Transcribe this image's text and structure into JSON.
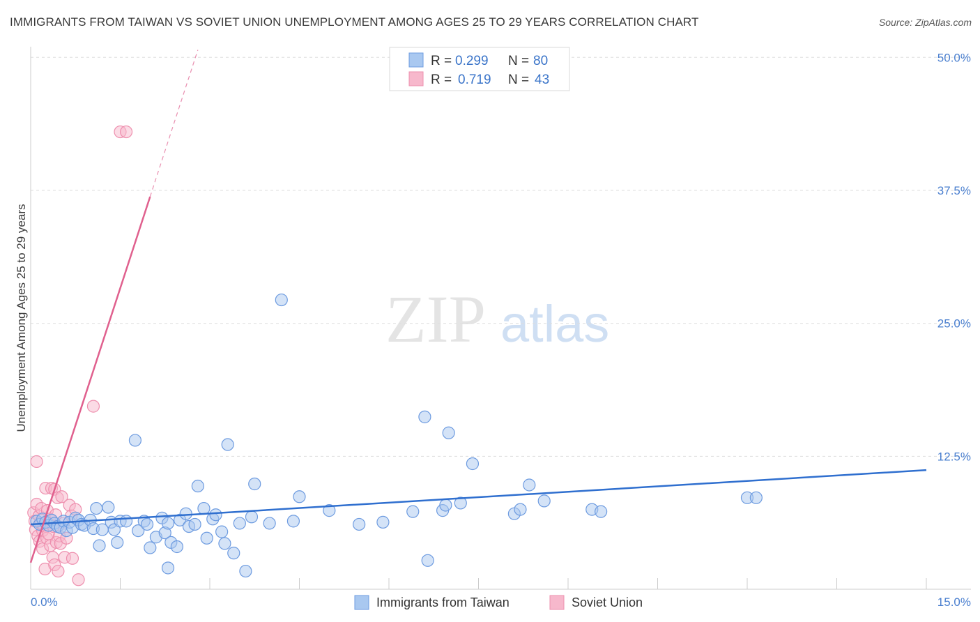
{
  "title": "IMMIGRANTS FROM TAIWAN VS SOVIET UNION UNEMPLOYMENT AMONG AGES 25 TO 29 YEARS CORRELATION CHART",
  "source": "Source: ZipAtlas.com",
  "watermark": {
    "zip": "ZIP",
    "atlas": "atlas"
  },
  "colors": {
    "taiwan_fill": "#a9c8f0",
    "taiwan_stroke": "#6d9be0",
    "taiwan_line": "#2f6fcf",
    "soviet_fill": "#f7b8cc",
    "soviet_stroke": "#ee8fae",
    "soviet_line": "#e0608e",
    "tick_label": "#4a7fcf",
    "grid": "#dddddd"
  },
  "legend": {
    "rows": [
      {
        "r_label": "R =",
        "r_value": "0.299",
        "n_label": "N =",
        "n_value": "80"
      },
      {
        "r_label": "R =",
        "r_value": "0.719",
        "n_label": "N =",
        "n_value": "43"
      }
    ]
  },
  "bottom_legend": [
    "Immigrants from Taiwan",
    "Soviet Union"
  ],
  "chart_data": {
    "type": "scatter",
    "xlabel": "",
    "ylabel": "Unemployment Among Ages 25 to 29 years",
    "xlim": [
      0,
      15
    ],
    "ylim": [
      0,
      51
    ],
    "x_tick_labels": [
      "0.0%",
      "15.0%"
    ],
    "y_ticks": [
      12.5,
      25.0,
      37.5,
      50.0
    ],
    "y_tick_labels": [
      "12.5%",
      "25.0%",
      "37.5%",
      "50.0%"
    ],
    "grid": true,
    "legend_position": "top-center",
    "series": [
      {
        "name": "Immigrants from Taiwan",
        "r": 0.299,
        "n": 80,
        "trend": {
          "x": [
            0.0,
            15.0
          ],
          "y": [
            6.1,
            11.2
          ]
        },
        "points": [
          [
            0.1,
            6.4
          ],
          [
            0.15,
            6.1
          ],
          [
            0.2,
            6.6
          ],
          [
            0.25,
            6.3
          ],
          [
            0.3,
            6.0
          ],
          [
            0.35,
            6.5
          ],
          [
            0.4,
            6.2
          ],
          [
            0.45,
            5.9
          ],
          [
            0.5,
            5.8
          ],
          [
            0.55,
            6.4
          ],
          [
            0.6,
            5.5
          ],
          [
            0.65,
            6.3
          ],
          [
            0.7,
            5.8
          ],
          [
            0.75,
            6.7
          ],
          [
            0.8,
            6.5
          ],
          [
            0.85,
            6.1
          ],
          [
            0.9,
            6.0
          ],
          [
            1.0,
            6.5
          ],
          [
            1.05,
            5.7
          ],
          [
            1.1,
            7.6
          ],
          [
            1.15,
            4.1
          ],
          [
            1.2,
            5.6
          ],
          [
            1.3,
            7.7
          ],
          [
            1.35,
            6.3
          ],
          [
            1.4,
            5.6
          ],
          [
            1.45,
            4.4
          ],
          [
            1.5,
            6.4
          ],
          [
            1.6,
            6.4
          ],
          [
            1.8,
            5.5
          ],
          [
            1.9,
            6.4
          ],
          [
            1.95,
            6.1
          ],
          [
            2.0,
            3.9
          ],
          [
            2.1,
            4.9
          ],
          [
            2.2,
            6.7
          ],
          [
            2.25,
            5.3
          ],
          [
            2.3,
            2.0
          ],
          [
            2.35,
            4.4
          ],
          [
            2.45,
            4.0
          ],
          [
            2.5,
            6.5
          ],
          [
            2.6,
            7.1
          ],
          [
            2.65,
            5.9
          ],
          [
            2.75,
            6.1
          ],
          [
            2.8,
            9.7
          ],
          [
            2.9,
            7.6
          ],
          [
            2.95,
            4.8
          ],
          [
            3.05,
            6.6
          ],
          [
            3.1,
            7.0
          ],
          [
            3.2,
            5.4
          ],
          [
            3.25,
            4.3
          ],
          [
            3.3,
            13.6
          ],
          [
            3.4,
            3.4
          ],
          [
            3.5,
            6.2
          ],
          [
            3.6,
            1.7
          ],
          [
            3.7,
            6.8
          ],
          [
            3.75,
            9.9
          ],
          [
            4.0,
            6.2
          ],
          [
            4.2,
            27.2
          ],
          [
            4.4,
            6.4
          ],
          [
            4.5,
            8.7
          ],
          [
            5.0,
            7.4
          ],
          [
            5.5,
            6.1
          ],
          [
            5.9,
            6.3
          ],
          [
            6.4,
            7.3
          ],
          [
            6.6,
            16.2
          ],
          [
            6.65,
            2.7
          ],
          [
            6.9,
            7.4
          ],
          [
            6.95,
            7.9
          ],
          [
            7.0,
            14.7
          ],
          [
            7.2,
            8.1
          ],
          [
            7.4,
            11.8
          ],
          [
            8.1,
            7.1
          ],
          [
            8.2,
            7.5
          ],
          [
            8.35,
            9.8
          ],
          [
            8.6,
            8.3
          ],
          [
            9.4,
            7.5
          ],
          [
            9.55,
            7.3
          ],
          [
            12.0,
            8.6
          ],
          [
            12.15,
            8.6
          ],
          [
            1.75,
            14.0
          ],
          [
            2.3,
            6.2
          ]
        ]
      },
      {
        "name": "Soviet Union",
        "r": 0.719,
        "n": 43,
        "trend_solid": {
          "x": [
            0.0,
            2.0
          ],
          "y": [
            2.5,
            36.9
          ]
        },
        "trend_dashed": {
          "x": [
            2.0,
            2.8
          ],
          "y": [
            36.9,
            50.7
          ]
        },
        "points": [
          [
            0.05,
            7.2
          ],
          [
            0.07,
            6.4
          ],
          [
            0.08,
            5.6
          ],
          [
            0.1,
            8.0
          ],
          [
            0.1,
            12.0
          ],
          [
            0.12,
            5.0
          ],
          [
            0.14,
            6.9
          ],
          [
            0.15,
            4.5
          ],
          [
            0.17,
            6.2
          ],
          [
            0.18,
            7.6
          ],
          [
            0.2,
            5.5
          ],
          [
            0.2,
            3.8
          ],
          [
            0.22,
            6.0
          ],
          [
            0.24,
            1.9
          ],
          [
            0.25,
            9.5
          ],
          [
            0.27,
            4.8
          ],
          [
            0.28,
            7.4
          ],
          [
            0.3,
            5.2
          ],
          [
            0.32,
            6.6
          ],
          [
            0.33,
            4.1
          ],
          [
            0.35,
            9.5
          ],
          [
            0.37,
            3.0
          ],
          [
            0.38,
            5.9
          ],
          [
            0.4,
            2.3
          ],
          [
            0.4,
            9.4
          ],
          [
            0.42,
            7.0
          ],
          [
            0.43,
            4.4
          ],
          [
            0.45,
            8.6
          ],
          [
            0.46,
            1.7
          ],
          [
            0.48,
            5.0
          ],
          [
            0.5,
            4.3
          ],
          [
            0.52,
            8.7
          ],
          [
            0.55,
            6.2
          ],
          [
            0.57,
            3.0
          ],
          [
            0.6,
            4.8
          ],
          [
            0.65,
            7.9
          ],
          [
            0.68,
            6.9
          ],
          [
            0.7,
            2.9
          ],
          [
            0.75,
            7.5
          ],
          [
            0.8,
            0.9
          ],
          [
            1.05,
            17.2
          ],
          [
            1.5,
            43.0
          ],
          [
            1.6,
            43.0
          ]
        ]
      }
    ]
  }
}
